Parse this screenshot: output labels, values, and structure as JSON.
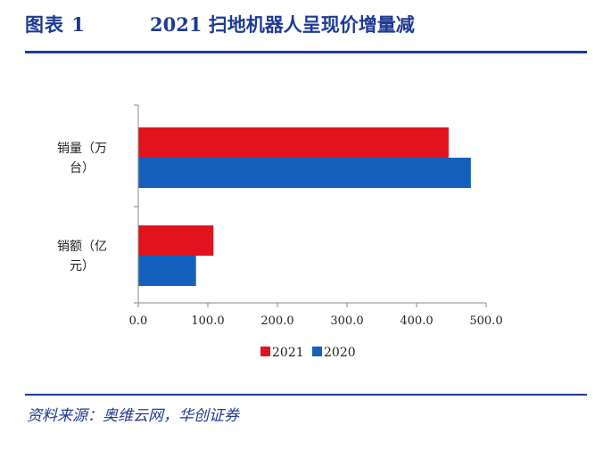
{
  "header": {
    "figure_label": "图表  1",
    "title": "2021 扫地机器人呈现价增量减"
  },
  "source": "资料来源：奥维云网，华创证券",
  "colors": {
    "series_2021": "#e3121f",
    "series_2020": "#1560bd",
    "accent": "#1f3a93"
  },
  "chart_data": {
    "type": "bar",
    "orientation": "horizontal",
    "categories": [
      [
        "销量（万",
        "台）"
      ],
      [
        "销额（亿",
        "元）"
      ]
    ],
    "series": [
      {
        "name": "2021",
        "values": [
          446,
          108
        ]
      },
      {
        "name": "2020",
        "values": [
          478,
          83
        ]
      }
    ],
    "xlim": [
      0,
      500
    ],
    "xticks": [
      "0.0",
      "100.0",
      "200.0",
      "300.0",
      "400.0",
      "500.0"
    ],
    "legend": "bottom",
    "grid": false
  }
}
